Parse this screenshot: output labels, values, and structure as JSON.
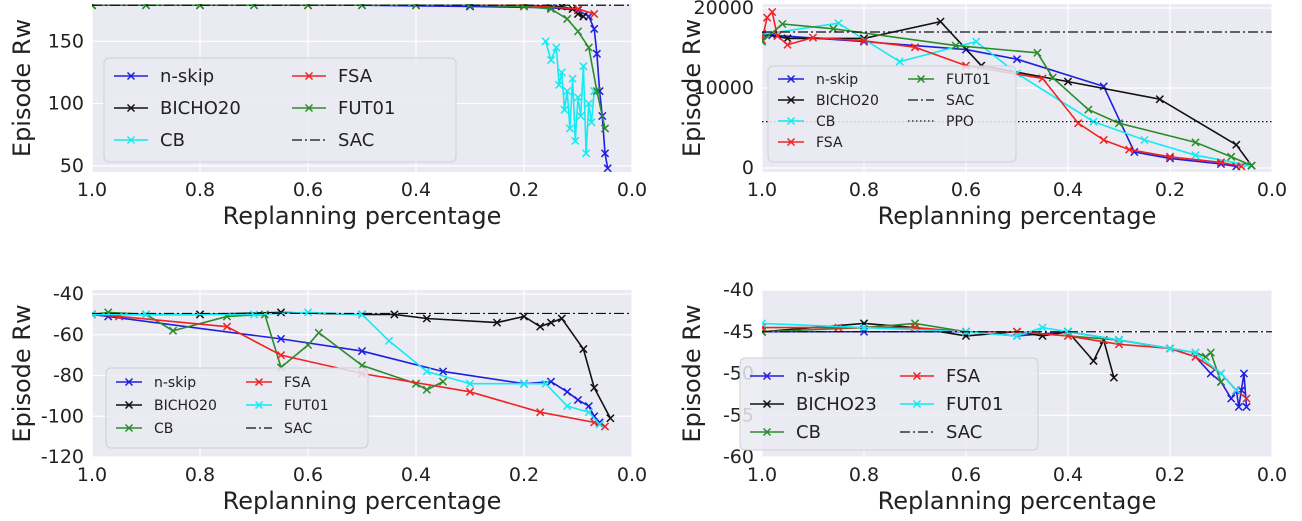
{
  "colors": {
    "n-skip": "#1f1fe0",
    "BICHO20": "#111111",
    "BICHO23": "#111111",
    "CB_cyan": "#13eaf2",
    "CB_green": "#2a8c2a",
    "FSA": "#f02424",
    "FUT01_green": "#2a8c2a",
    "FUT01_cyan": "#13eaf2",
    "SAC": "#111111",
    "PPO": "#111111",
    "panel_bg": "#eaeaf2"
  },
  "chart_data": [
    {
      "type": "line",
      "xlabel": "Replanning percentage",
      "ylabel": "Episode Rw",
      "xlim": [
        1.0,
        0.0
      ],
      "ylim": [
        45,
        180
      ],
      "xticks": [
        "1.0",
        "0.8",
        "0.6",
        "0.4",
        "0.2",
        "0.0"
      ],
      "yticks": [
        "50",
        "100",
        "150"
      ],
      "grid": true,
      "legend_position": "lower-left",
      "legend_columns": 2,
      "legend": [
        "n-skip",
        "FSA",
        "BICHO20",
        "FUT01",
        "CB",
        "SAC"
      ],
      "series": [
        {
          "name": "n-skip",
          "color": "#1f1fe0",
          "marker": "x",
          "x": [
            1.0,
            0.9,
            0.7,
            0.5,
            0.3,
            0.15,
            0.1,
            0.08,
            0.07,
            0.065,
            0.06,
            0.055,
            0.05,
            0.045
          ],
          "y": [
            179,
            179,
            179,
            179,
            178,
            177,
            175,
            170,
            160,
            140,
            110,
            90,
            60,
            48
          ]
        },
        {
          "name": "BICHO20",
          "color": "#111111",
          "marker": "x",
          "x": [
            1.0,
            0.8,
            0.6,
            0.4,
            0.2,
            0.13,
            0.11,
            0.1,
            0.09
          ],
          "y": [
            179,
            179,
            179,
            179,
            179,
            178,
            176,
            172,
            170
          ]
        },
        {
          "name": "CB",
          "color": "#13eaf2",
          "marker": "x",
          "x": [
            0.16,
            0.15,
            0.14,
            0.135,
            0.13,
            0.125,
            0.12,
            0.115,
            0.11,
            0.105,
            0.1,
            0.095,
            0.09,
            0.085,
            0.08,
            0.075,
            0.07
          ],
          "y": [
            150,
            135,
            145,
            115,
            125,
            95,
            110,
            80,
            120,
            70,
            105,
            90,
            130,
            60,
            100,
            85,
            110
          ]
        },
        {
          "name": "FSA",
          "color": "#f02424",
          "marker": "x",
          "x": [
            1.0,
            0.8,
            0.6,
            0.4,
            0.2,
            0.1,
            0.07
          ],
          "y": [
            179,
            179,
            179,
            179,
            179,
            176,
            172
          ]
        },
        {
          "name": "FUT01",
          "color": "#2a8c2a",
          "marker": "x",
          "x": [
            1.0,
            0.9,
            0.8,
            0.7,
            0.6,
            0.5,
            0.4,
            0.3,
            0.2,
            0.15,
            0.12,
            0.1,
            0.08,
            0.065,
            0.05
          ],
          "y": [
            179,
            179,
            179,
            179,
            179,
            179,
            179,
            179,
            178,
            176,
            168,
            158,
            145,
            110,
            80
          ]
        },
        {
          "name": "SAC",
          "color": "#111111",
          "style": "dashdot",
          "x": [
            1.0,
            0.0
          ],
          "y": [
            179,
            179
          ]
        }
      ]
    },
    {
      "type": "line",
      "xlabel": "Replanning percentage",
      "ylabel": "Episode Rw",
      "xlim": [
        1.0,
        0.0
      ],
      "ylim": [
        -500,
        20500
      ],
      "xticks": [
        "1.0",
        "0.8",
        "0.6",
        "0.4",
        "0.2",
        "0.0"
      ],
      "yticks": [
        "0",
        "10000",
        "20000"
      ],
      "grid": true,
      "legend_position": "upper-left",
      "legend_columns": 2,
      "legend": [
        "n-skip",
        "FUT01",
        "BICHO20",
        "SAC",
        "CB",
        "PPO",
        "FSA"
      ],
      "series": [
        {
          "name": "n-skip",
          "color": "#1f1fe0",
          "marker": "x",
          "x": [
            1.0,
            0.98,
            0.8,
            0.6,
            0.5,
            0.33,
            0.27,
            0.2,
            0.1,
            0.07
          ],
          "y": [
            16500,
            16600,
            15800,
            14800,
            13600,
            10200,
            2000,
            1200,
            500,
            200
          ]
        },
        {
          "name": "BICHO20",
          "color": "#111111",
          "marker": "x",
          "x": [
            1.0,
            0.95,
            0.8,
            0.65,
            0.57,
            0.4,
            0.22,
            0.07,
            0.04
          ],
          "y": [
            16800,
            16200,
            16200,
            18300,
            12800,
            10800,
            8600,
            2900,
            300
          ]
        },
        {
          "name": "CB",
          "color": "#13eaf2",
          "marker": "x",
          "x": [
            1.0,
            0.85,
            0.73,
            0.58,
            0.5,
            0.35,
            0.25,
            0.15,
            0.05
          ],
          "y": [
            16700,
            18100,
            13300,
            15800,
            11800,
            5800,
            3500,
            1600,
            400
          ]
        },
        {
          "name": "FSA",
          "color": "#f02424",
          "marker": "x",
          "x": [
            1.0,
            0.99,
            0.98,
            0.97,
            0.95,
            0.9,
            0.8,
            0.7,
            0.6,
            0.45,
            0.38,
            0.33,
            0.28,
            0.2,
            0.1,
            0.06
          ],
          "y": [
            16000,
            18800,
            19500,
            16500,
            15400,
            16300,
            15900,
            15100,
            12800,
            11200,
            5600,
            3500,
            2300,
            1400,
            700,
            200
          ]
        },
        {
          "name": "FUT01",
          "color": "#2a8c2a",
          "marker": "x",
          "x": [
            1.0,
            0.96,
            0.86,
            0.62,
            0.46,
            0.43,
            0.36,
            0.3,
            0.15,
            0.08,
            0.04
          ],
          "y": [
            15800,
            18000,
            17400,
            15300,
            14400,
            11300,
            7300,
            5600,
            3200,
            1400,
            300
          ]
        },
        {
          "name": "SAC",
          "color": "#111111",
          "style": "dashdot",
          "x": [
            1.0,
            0.0
          ],
          "y": [
            17000,
            17000
          ]
        },
        {
          "name": "PPO",
          "color": "#111111",
          "style": "dotted",
          "x": [
            1.0,
            0.0
          ],
          "y": [
            5800,
            5800
          ]
        }
      ]
    },
    {
      "type": "line",
      "xlabel": "Replanning percentage",
      "ylabel": "Episode Rw",
      "xlim": [
        1.0,
        0.0
      ],
      "ylim": [
        -120,
        -38
      ],
      "xticks": [
        "1.0",
        "0.8",
        "0.6",
        "0.4",
        "0.2",
        "0.0"
      ],
      "yticks": [
        "-40",
        "-60",
        "-80",
        "-100",
        "-120"
      ],
      "grid": true,
      "legend_position": "lower-left",
      "legend_columns": 2,
      "legend": [
        "n-skip",
        "FSA",
        "BICHO20",
        "FUT01",
        "CB",
        "SAC"
      ],
      "series": [
        {
          "name": "n-skip",
          "color": "#1f1fe0",
          "marker": "x",
          "x": [
            1.0,
            0.97,
            0.65,
            0.5,
            0.35,
            0.2,
            0.15,
            0.12,
            0.1,
            0.08,
            0.07,
            0.06
          ],
          "y": [
            -50,
            -51,
            -62,
            -68,
            -78,
            -84,
            -83,
            -88,
            -92,
            -95,
            -100,
            -103
          ]
        },
        {
          "name": "BICHO20",
          "color": "#111111",
          "marker": "x",
          "x": [
            1.0,
            0.8,
            0.65,
            0.5,
            0.44,
            0.38,
            0.25,
            0.2,
            0.17,
            0.15,
            0.13,
            0.09,
            0.07,
            0.04
          ],
          "y": [
            -50,
            -50,
            -49,
            -50,
            -50,
            -52,
            -54,
            -51,
            -56,
            -54,
            -52,
            -67,
            -86,
            -101
          ]
        },
        {
          "name": "CB",
          "color": "#2a8c2a",
          "marker": "x",
          "x": [
            1.0,
            0.97,
            0.9,
            0.85,
            0.75,
            0.68,
            0.65,
            0.6,
            0.58,
            0.5,
            0.4,
            0.38,
            0.35
          ],
          "y": [
            -50,
            -49,
            -50,
            -58,
            -51,
            -50,
            -76,
            -65,
            -59,
            -75,
            -84,
            -87,
            -83
          ]
        },
        {
          "name": "FSA",
          "color": "#f02424",
          "marker": "x",
          "x": [
            1.0,
            0.95,
            0.75,
            0.65,
            0.5,
            0.3,
            0.17,
            0.07,
            0.05
          ],
          "y": [
            -50,
            -51,
            -56,
            -70,
            -79,
            -88,
            -98,
            -103,
            -105
          ]
        },
        {
          "name": "FUT01",
          "color": "#13eaf2",
          "marker": "x",
          "x": [
            1.0,
            0.9,
            0.7,
            0.6,
            0.5,
            0.45,
            0.38,
            0.3,
            0.2,
            0.16,
            0.12,
            0.08,
            0.06
          ],
          "y": [
            -50,
            -50,
            -50,
            -49,
            -50,
            -63,
            -78,
            -84,
            -84,
            -84,
            -95,
            -98,
            -104
          ]
        },
        {
          "name": "SAC",
          "color": "#111111",
          "style": "dashdot",
          "x": [
            1.0,
            0.0
          ],
          "y": [
            -49.5,
            -49.5
          ]
        }
      ]
    },
    {
      "type": "line",
      "xlabel": "Replanning percentage",
      "ylabel": "Episode Rw",
      "xlim": [
        1.0,
        0.0
      ],
      "ylim": [
        -60,
        -40
      ],
      "xticks": [
        "1.0",
        "0.8",
        "0.6",
        "0.4",
        "0.2",
        "0.0"
      ],
      "yticks": [
        "-40",
        "-45",
        "-50",
        "-55",
        "-60"
      ],
      "grid": true,
      "legend_position": "lower-left",
      "legend_columns": 2,
      "legend": [
        "n-skip",
        "FSA",
        "BICHO23",
        "FUT01",
        "CB",
        "SAC"
      ],
      "series": [
        {
          "name": "n-skip",
          "color": "#1f1fe0",
          "marker": "x",
          "x": [
            1.0,
            0.8,
            0.6,
            0.5,
            0.4,
            0.3,
            0.2,
            0.15,
            0.12,
            0.1,
            0.08,
            0.07,
            0.065,
            0.06,
            0.055,
            0.05
          ],
          "y": [
            -45,
            -45,
            -45,
            -45.5,
            -45,
            -46,
            -47,
            -48,
            -50,
            -51,
            -53,
            -52,
            -54,
            -52,
            -50,
            -54
          ]
        },
        {
          "name": "BICHO23",
          "color": "#111111",
          "marker": "x",
          "x": [
            1.0,
            0.8,
            0.7,
            0.6,
            0.5,
            0.45,
            0.4,
            0.35,
            0.33,
            0.31
          ],
          "y": [
            -45,
            -44,
            -44.5,
            -45.5,
            -45,
            -45.5,
            -45,
            -48.5,
            -46,
            -50.5
          ]
        },
        {
          "name": "CB",
          "color": "#2a8c2a",
          "marker": "x",
          "x": [
            1.0,
            0.8,
            0.7,
            0.6,
            0.5,
            0.4,
            0.3,
            0.2,
            0.15,
            0.13,
            0.12,
            0.1
          ],
          "y": [
            -45,
            -44.5,
            -44,
            -45,
            -45,
            -45.5,
            -46,
            -47,
            -47.5,
            -48,
            -47.5,
            -51
          ]
        },
        {
          "name": "FSA",
          "color": "#f02424",
          "marker": "x",
          "x": [
            1.0,
            0.85,
            0.7,
            0.6,
            0.5,
            0.4,
            0.3,
            0.2,
            0.15,
            0.1,
            0.07,
            0.05
          ],
          "y": [
            -44.5,
            -44.5,
            -44.5,
            -45,
            -45,
            -45.5,
            -46.5,
            -47,
            -48,
            -50,
            -52,
            -53
          ]
        },
        {
          "name": "FUT01",
          "color": "#13eaf2",
          "marker": "x",
          "x": [
            1.0,
            0.8,
            0.6,
            0.5,
            0.45,
            0.4,
            0.3,
            0.2,
            0.15,
            0.1,
            0.07
          ],
          "y": [
            -44,
            -44.5,
            -45,
            -45.5,
            -44.5,
            -45,
            -46,
            -47,
            -47.5,
            -50,
            -52
          ]
        },
        {
          "name": "SAC",
          "color": "#111111",
          "style": "dashdot",
          "x": [
            1.0,
            0.0
          ],
          "y": [
            -45,
            -45
          ]
        }
      ]
    }
  ]
}
